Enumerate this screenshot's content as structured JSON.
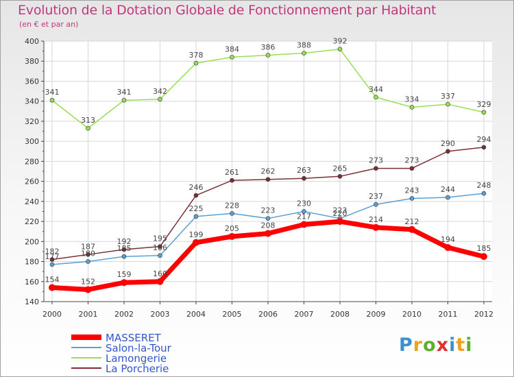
{
  "chart_data": {
    "type": "line",
    "title": "Evolution de la Dotation Globale de Fonctionnement par Habitant",
    "subtitle": "(en € et par an)",
    "xlabel": "",
    "ylabel": "",
    "ylim": [
      140,
      400
    ],
    "yticks": [
      140,
      160,
      180,
      200,
      220,
      240,
      260,
      280,
      300,
      320,
      340,
      360,
      380,
      400
    ],
    "categories": [
      "2000",
      "2001",
      "2002",
      "2003",
      "2004",
      "2005",
      "2006",
      "2007",
      "2008",
      "2009",
      "2010",
      "2011",
      "2012"
    ],
    "series": [
      {
        "name": "MASSERET",
        "color": "#ff0000",
        "values": [
          154,
          152,
          159,
          160,
          199,
          205,
          208,
          217,
          220,
          214,
          212,
          194,
          185
        ]
      },
      {
        "name": "Salon-la-Tour",
        "color": "#5a9fd4",
        "values": [
          177,
          180,
          185,
          186,
          225,
          228,
          223,
          230,
          223,
          237,
          243,
          244,
          248
        ]
      },
      {
        "name": "Lamongerie",
        "color": "#99dd55",
        "values": [
          341,
          313,
          341,
          342,
          378,
          384,
          386,
          388,
          392,
          344,
          334,
          337,
          329
        ]
      },
      {
        "name": "La Porcherie",
        "color": "#7a2e35",
        "values": [
          182,
          187,
          192,
          195,
          246,
          261,
          262,
          263,
          265,
          273,
          273,
          290,
          294
        ]
      }
    ],
    "grid": true,
    "legend_position": "bottom-left"
  },
  "logo": {
    "text": [
      "P",
      "r",
      "o",
      "x",
      "i",
      "t",
      "i"
    ]
  },
  "colors": {
    "title": "#c0387c",
    "axis": "#444444",
    "grid": "#d6d6d6"
  }
}
